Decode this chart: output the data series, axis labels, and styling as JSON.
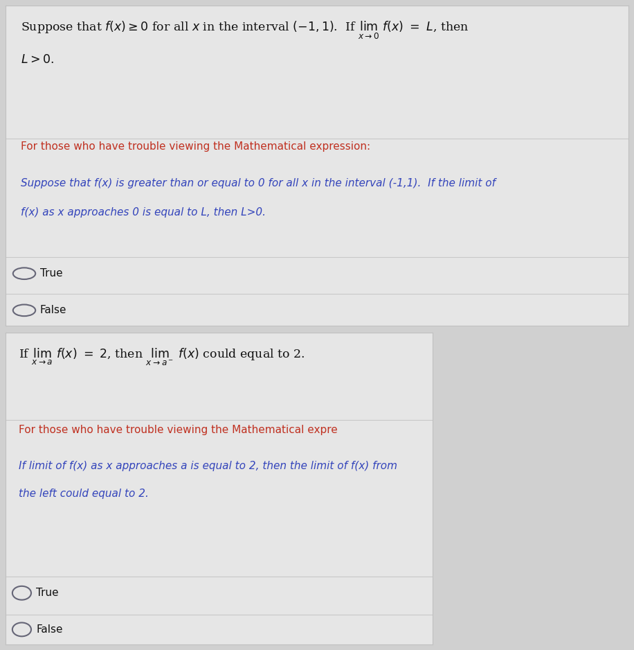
{
  "bg_color": "#d0d0d0",
  "box1_bg": "#e6e6e6",
  "box2_bg": "#e6e6e6",
  "box_border": "#c0c0c0",
  "text_color_black": "#111111",
  "text_color_red": "#c03020",
  "text_color_blue": "#3344bb",
  "radio_color": "#666677",
  "line_color": "#c8c8c8",
  "q1_trouble": "For those who have trouble viewing the Mathematical expression:",
  "q1_italic_line1": "Suppose that f(x) is greater than or equal to 0 for all x in the interval (-1,1).  If the limit of",
  "q1_italic_line2": "f(x) as x approaches 0 is equal to L, then L>0.",
  "q2_trouble": "For those who have trouble viewing the Mathematical expre",
  "q2_italic_line1": "If limit of f(x) as x approaches a is equal to 2, then the limit of f(x) from",
  "q2_italic_line2": "the left could equal to 2.",
  "true_label": "True",
  "false_label": "False",
  "fig_width": 9.16,
  "fig_height": 9.38,
  "dpi": 100
}
